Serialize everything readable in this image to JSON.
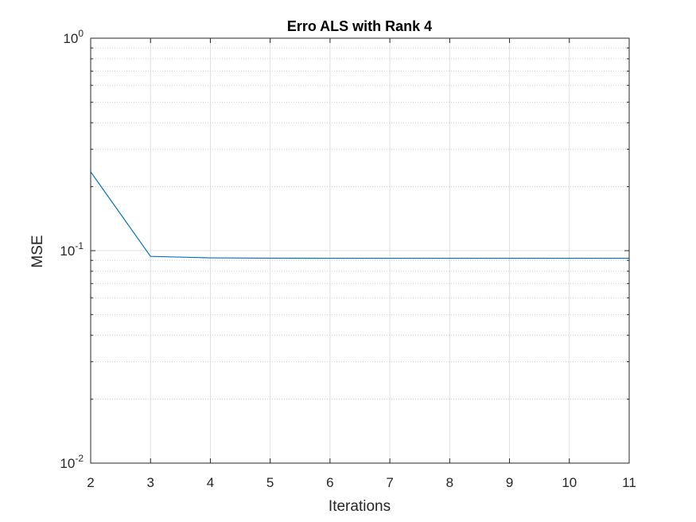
{
  "chart_data": {
    "type": "line",
    "title": "Erro ALS with Rank 4",
    "xlabel": "Iterations",
    "ylabel": "MSE",
    "x": [
      2,
      3,
      4,
      5,
      6,
      7,
      8,
      9,
      10,
      11
    ],
    "series": [
      {
        "values": [
          0.235,
          0.094,
          0.0925,
          0.0922,
          0.0921,
          0.0921,
          0.0921,
          0.0921,
          0.0921,
          0.0921
        ],
        "color": "#0072BD"
      }
    ],
    "xlim": [
      2,
      11
    ],
    "ylim": [
      0.01,
      1
    ],
    "yscale": "log",
    "xticks": [
      "2",
      "3",
      "4",
      "5",
      "6",
      "7",
      "8",
      "9",
      "10",
      "11"
    ],
    "yticks": [
      {
        "base": "10",
        "exp": "-2"
      },
      {
        "base": "10",
        "exp": "-1"
      },
      {
        "base": "10",
        "exp": "0"
      }
    ],
    "grid": true,
    "minor_grid": true,
    "box": true
  }
}
